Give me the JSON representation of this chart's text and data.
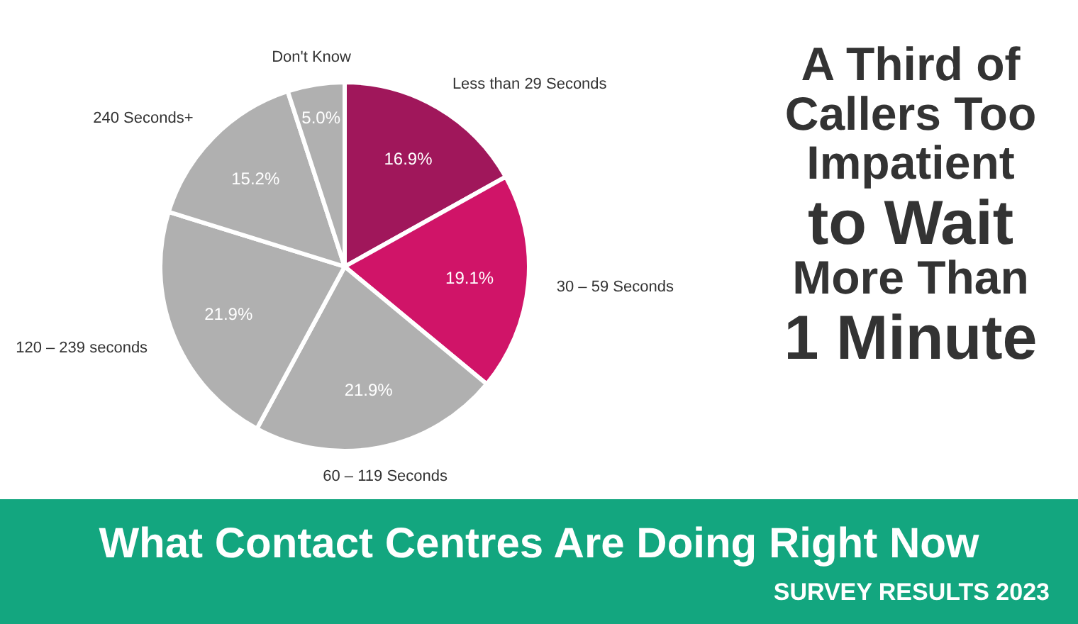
{
  "chart_data": {
    "type": "pie",
    "title": "A Third of Callers Too Impatient to Wait More Than 1 Minute",
    "subtitle": "What Contact Centres Are Doing Right Now",
    "annotations": [
      "SURVEY RESULTS 2023"
    ],
    "categories": [
      "Less than 29 Seconds",
      "30 – 59 Seconds",
      "60 – 119 Seconds",
      "120 – 239 seconds",
      "240 Seconds+",
      "Don't Know"
    ],
    "values": [
      16.9,
      19.1,
      21.9,
      21.9,
      15.2,
      5.0
    ],
    "colors": [
      "#a0175b",
      "#d01468",
      "#b0b0b0",
      "#b0b0b0",
      "#b0b0b0",
      "#b0b0b0"
    ],
    "value_labels": [
      "16.9%",
      "19.1%",
      "21.9%",
      "21.9%",
      "15.2%",
      "5.0%"
    ]
  }
}
